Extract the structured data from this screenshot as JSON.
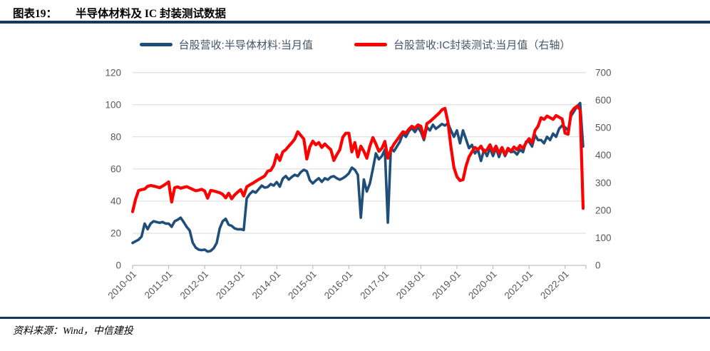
{
  "header": {
    "chart_no": "图表19：",
    "title": "半导体材料及 IC 封装测试数据"
  },
  "legend": [
    {
      "label": "台股营收:半导体材料:当月值",
      "color": "#1F4E79"
    },
    {
      "label": "台股营收:IC封装测试:当月值（右轴）",
      "color": "#FF0000"
    }
  ],
  "footer": {
    "source": "资料来源：Wind，中信建投"
  },
  "colors": {
    "accent_rule": "#17375E",
    "blue_series": "#1F4E79",
    "red_series": "#FF0000",
    "axis_text": "#595959",
    "gridline": "#D9D9D9",
    "axis_line": "#BFBFBF",
    "legend_text": "#44546A"
  },
  "chart_data": {
    "type": "line",
    "title": "半导体材料及 IC 封装测试数据",
    "x_start": "2010-01",
    "x_end": "2022-07",
    "months_total": 151,
    "x_tick_labels": [
      "2010-01",
      "2011-01",
      "2012-01",
      "2013-01",
      "2014-01",
      "2015-01",
      "2016-01",
      "2017-01",
      "2018-01",
      "2019-01",
      "2020-01",
      "2021-01",
      "2022-01"
    ],
    "left_axis": {
      "min": 0,
      "max": 120,
      "ticks": [
        0,
        20,
        40,
        60,
        80,
        100,
        120
      ]
    },
    "right_axis": {
      "min": 0,
      "max": 700,
      "ticks": [
        0,
        100,
        200,
        300,
        400,
        500,
        600,
        700
      ]
    },
    "grid": true,
    "legend_position": "top-center",
    "series": [
      {
        "name": "台股营收:半导体材料:当月值",
        "axis": "left",
        "color": "#1F4E79",
        "stroke_width": 3.6,
        "values": [
          14,
          15,
          16,
          18,
          26,
          22.5,
          26,
          27.5,
          27,
          26.5,
          27,
          26,
          26,
          24,
          27.5,
          28.4,
          29.7,
          27,
          24,
          21.7,
          14.2,
          11.1,
          9.8,
          9.5,
          9.8,
          8.6,
          9,
          10.7,
          14,
          23,
          27.5,
          29,
          25.3,
          24.6,
          23,
          22.4,
          22.5,
          22,
          41.7,
          44.4,
          46.2,
          45.3,
          47.5,
          49.7,
          48.4,
          48.8,
          50.6,
          49.7,
          51.9,
          49,
          54,
          55.6,
          53.4,
          55,
          56.4,
          55.6,
          58,
          59.5,
          58.6,
          53,
          51,
          52.8,
          54.2,
          52,
          54.2,
          53.3,
          55,
          55.5,
          54.2,
          53.3,
          54.2,
          55.5,
          57.3,
          60.8,
          59.5,
          56.4,
          29.7,
          53.5,
          46,
          51,
          60,
          69.7,
          66,
          68,
          72,
          26.6,
          73,
          71,
          74,
          77,
          82,
          80,
          83.5,
          85.5,
          83,
          86,
          83,
          78,
          86,
          84,
          87.5,
          85,
          86.5,
          88,
          87,
          88.5,
          84,
          80,
          84,
          76,
          84,
          78.6,
          73,
          75,
          69.7,
          72,
          65,
          72,
          68,
          73,
          68,
          73,
          67.5,
          72.7,
          68,
          72,
          70.5,
          71,
          69,
          72,
          70.5,
          77,
          77,
          74,
          81,
          78,
          78,
          76,
          80,
          78,
          82,
          80,
          85,
          87,
          86,
          84,
          93,
          96,
          99,
          101,
          74
        ]
      },
      {
        "name": "台股营收:IC封装测试:当月值（右轴）",
        "axis": "right",
        "color": "#FF0000",
        "stroke_width": 4.2,
        "values": [
          195,
          240,
          272,
          275,
          277,
          287,
          290,
          288,
          285,
          282,
          288,
          295,
          303,
          230,
          282,
          285,
          280,
          283,
          286,
          281,
          276,
          271,
          273,
          276,
          270,
          244,
          272,
          270,
          267,
          264,
          258,
          245,
          262,
          242,
          256,
          266,
          275,
          252,
          285,
          292,
          298,
          305,
          312,
          318,
          325,
          342,
          345,
          363,
          402,
          381,
          412,
          420,
          433,
          445,
          459,
          485,
          472,
          459,
          386,
          430,
          451,
          438,
          446,
          428,
          441,
          430,
          420,
          381,
          402,
          420,
          465,
          480,
          480,
          412,
          446,
          394,
          433,
          414,
          389,
          433,
          464,
          441,
          414,
          425,
          450,
          389,
          420,
          440,
          455,
          470,
          485,
          480,
          495,
          505,
          498,
          510,
          505,
          462,
          515,
          522,
          532,
          542,
          552,
          565,
          570,
          520,
          430,
          355,
          322,
          308,
          311,
          360,
          394,
          412,
          428,
          420,
          433,
          412,
          420,
          438,
          412,
          433,
          407,
          428,
          402,
          425,
          415,
          430,
          420,
          435,
          425,
          445,
          460,
          445,
          490,
          505,
          536,
          530,
          542,
          536,
          530,
          544,
          538,
          532,
          480,
          476,
          555,
          570,
          578,
          565,
          207
        ]
      }
    ]
  }
}
